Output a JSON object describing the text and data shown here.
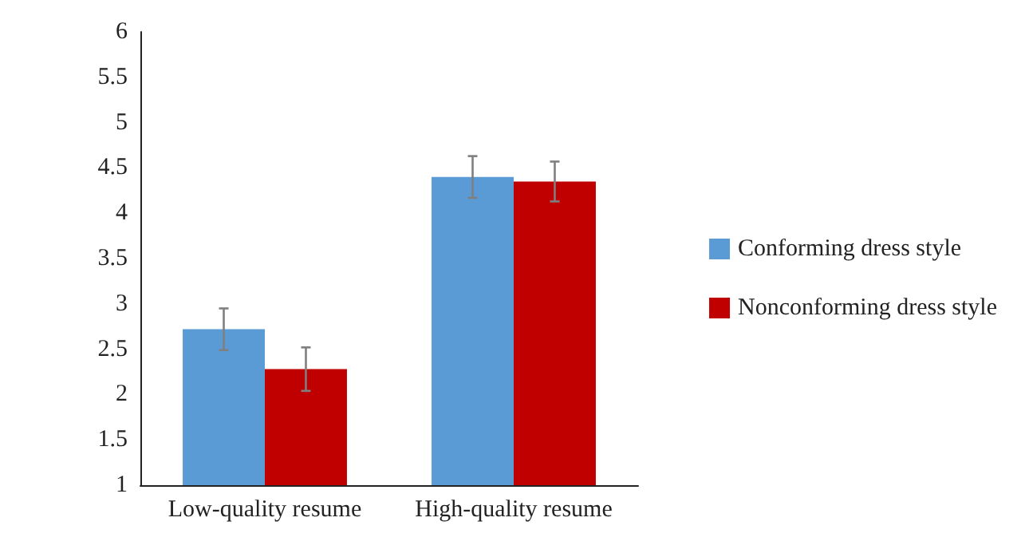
{
  "chart_data": {
    "type": "bar",
    "categories": [
      "Low-quality resume",
      "High-quality resume"
    ],
    "series": [
      {
        "name": "Conforming dress style",
        "color": "#5b9bd5",
        "values": [
          2.72,
          4.4
        ],
        "errors": [
          0.23,
          0.23
        ]
      },
      {
        "name": "Nonconforming dress style",
        "color": "#c00000",
        "values": [
          2.28,
          4.35
        ],
        "errors": [
          0.24,
          0.22
        ]
      }
    ],
    "ylim": [
      1,
      6
    ],
    "yticks": [
      1,
      1.5,
      2,
      2.5,
      3,
      3.5,
      4,
      4.5,
      5,
      5.5,
      6
    ],
    "grid": false,
    "legend": "right"
  }
}
